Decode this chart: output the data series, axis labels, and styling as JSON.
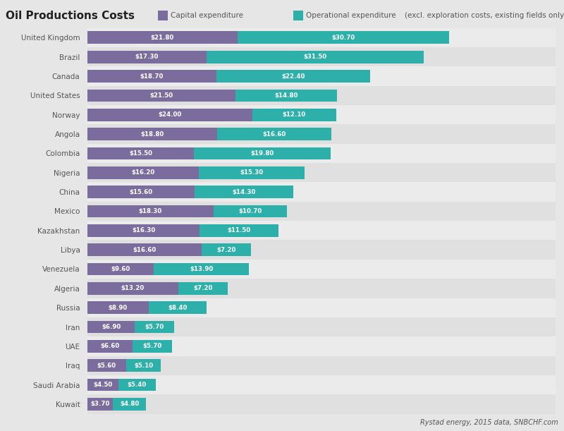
{
  "title": "Oil Productions Costs",
  "legend_cap": "Capital expenditure",
  "legend_op": "Operational expenditure",
  "legend_note": "(excl. exploration costs, existing fields only)",
  "source": "Rystad energy, 2015 data, SNBCHF.com",
  "countries": [
    "United Kingdom",
    "Brazil",
    "Canada",
    "United States",
    "Norway",
    "Angola",
    "Colombia",
    "Nigeria",
    "China",
    "Mexico",
    "Kazakhstan",
    "Libya",
    "Venezuela",
    "Algeria",
    "Russia",
    "Iran",
    "UAE",
    "Iraq",
    "Saudi Arabia",
    "Kuwait"
  ],
  "capex": [
    21.8,
    17.3,
    18.7,
    21.5,
    24.0,
    18.8,
    15.5,
    16.2,
    15.6,
    18.3,
    16.3,
    16.6,
    9.6,
    13.2,
    8.9,
    6.9,
    6.6,
    5.6,
    4.5,
    3.7
  ],
  "opex": [
    30.7,
    31.5,
    22.4,
    14.8,
    12.1,
    16.6,
    19.8,
    15.3,
    14.3,
    10.7,
    11.5,
    7.2,
    13.9,
    7.2,
    8.4,
    5.7,
    5.7,
    5.1,
    5.4,
    4.8
  ],
  "capex_color": "#7b6c9e",
  "opex_color": "#2db0aa",
  "bg_color": "#e6e6e6",
  "row_even": "#ebebeb",
  "row_odd": "#e0e0e0",
  "text_color": "#ffffff",
  "label_color": "#555555",
  "title_color": "#222222",
  "xlim": 68
}
